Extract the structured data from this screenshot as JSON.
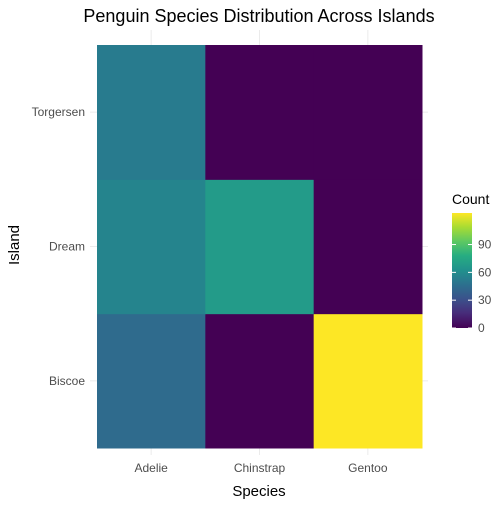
{
  "chart_data": {
    "type": "heatmap",
    "title": "Penguin Species Distribution Across Islands",
    "xlabel": "Species",
    "ylabel": "Island",
    "x_categories": [
      "Adelie",
      "Chinstrap",
      "Gentoo"
    ],
    "y_categories": [
      "Biscoe",
      "Dream",
      "Torgersen"
    ],
    "cells": [
      {
        "x": "Adelie",
        "y": "Biscoe",
        "value": 44
      },
      {
        "x": "Chinstrap",
        "y": "Biscoe",
        "value": 0
      },
      {
        "x": "Gentoo",
        "y": "Biscoe",
        "value": 124
      },
      {
        "x": "Adelie",
        "y": "Dream",
        "value": 56
      },
      {
        "x": "Chinstrap",
        "y": "Dream",
        "value": 68
      },
      {
        "x": "Gentoo",
        "y": "Dream",
        "value": 0
      },
      {
        "x": "Adelie",
        "y": "Torgersen",
        "value": 52
      },
      {
        "x": "Chinstrap",
        "y": "Torgersen",
        "value": 0
      },
      {
        "x": "Gentoo",
        "y": "Torgersen",
        "value": 0
      }
    ],
    "legend": {
      "title": "Count",
      "ticks": [
        0,
        30,
        60,
        90
      ],
      "range": [
        0,
        124
      ],
      "colormap": "viridis",
      "placement": "right"
    },
    "grid": true
  }
}
